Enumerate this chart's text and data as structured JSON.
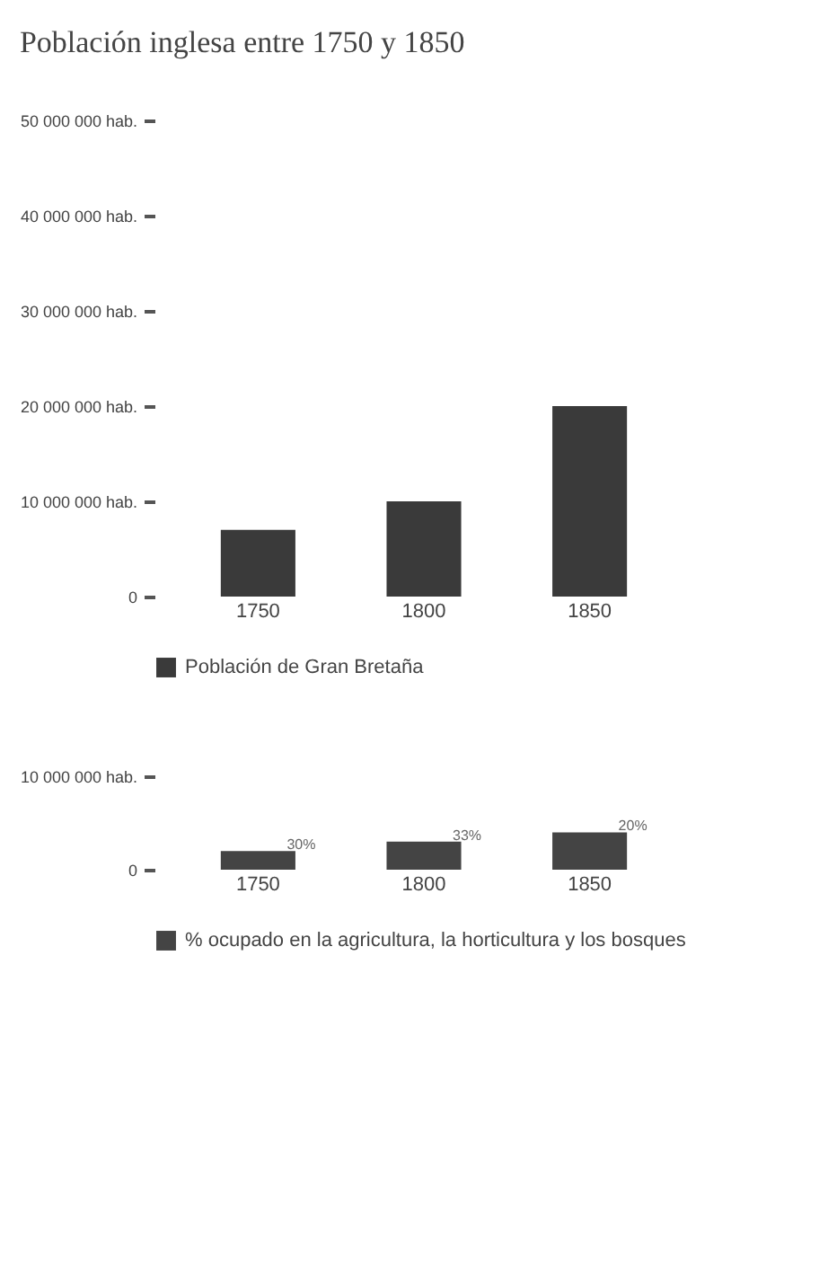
{
  "chart_data": [
    {
      "type": "bar",
      "title": "Población inglesa entre 1750 y 1850",
      "categories": [
        "1750",
        "1800",
        "1850"
      ],
      "series": [
        {
          "name": "Población de Gran Bretaña",
          "color": "#3a3a3a",
          "values": [
            7000000,
            10000000,
            20000000
          ]
        }
      ],
      "ylim": [
        0,
        50000000
      ],
      "yticks": [
        {
          "value": 0,
          "label": "0"
        },
        {
          "value": 10000000,
          "label": "10 000 000 hab."
        },
        {
          "value": 20000000,
          "label": "20 000 000 hab."
        },
        {
          "value": 30000000,
          "label": "30 000 000 hab."
        },
        {
          "value": 40000000,
          "label": "40 000 000 hab."
        },
        {
          "value": 50000000,
          "label": "50 000 000 hab."
        }
      ],
      "grid": false,
      "legend": "bottom"
    },
    {
      "type": "bar",
      "categories": [
        "1750",
        "1800",
        "1850"
      ],
      "series": [
        {
          "name": "% ocupado en la agricultura, la horticultura y los bosques",
          "color": "#444444",
          "values": [
            2000000,
            3000000,
            4000000
          ]
        }
      ],
      "annotations": [
        {
          "text": "30%",
          "x": "1750",
          "y": 2000000
        },
        {
          "text": "33%",
          "x": "1800",
          "y": 3000000
        },
        {
          "text": "20%",
          "x": "1850",
          "y": 4000000
        }
      ],
      "ylim": [
        0,
        10000000
      ],
      "yticks": [
        {
          "value": 0,
          "label": "0"
        },
        {
          "value": 10000000,
          "label": "10 000 000 hab."
        }
      ],
      "grid": false,
      "legend": "bottom"
    }
  ]
}
